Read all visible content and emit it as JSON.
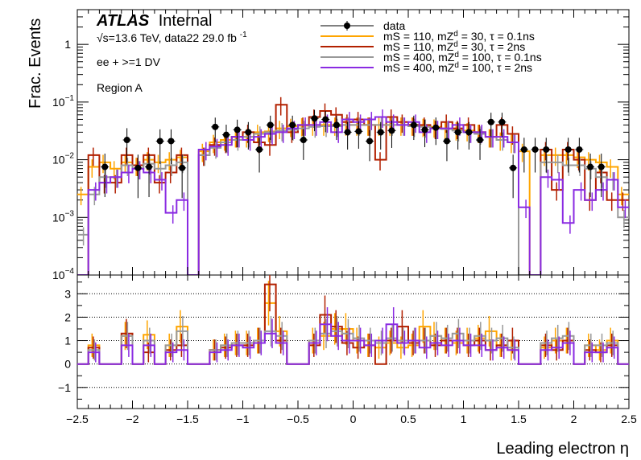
{
  "chart_data": {
    "type": "histogram-with-ratio",
    "x_axis": {
      "label": "Leading electron η",
      "range": [
        -2.5,
        2.5
      ],
      "ticks": [
        -2.5,
        -2,
        -1.5,
        -1,
        -0.5,
        0,
        0.5,
        1,
        1.5,
        2,
        2.5
      ],
      "tick_labels": [
        "−2.5",
        "−2",
        "−1.5",
        "−1",
        "−0.5",
        "0",
        "0.5",
        "1",
        "1.5",
        "2",
        "2.5"
      ]
    },
    "top_panel": {
      "ylabel": "Frac. Events",
      "yscale": "log",
      "ylim": [
        0.0001,
        4
      ],
      "ticks": [
        {
          "value": 1,
          "base": "1",
          "exp": ""
        },
        {
          "value": 0.1,
          "base": "10",
          "exp": "−1"
        },
        {
          "value": 0.01,
          "base": "10",
          "exp": "−2"
        },
        {
          "value": 0.001,
          "base": "10",
          "exp": "−3"
        },
        {
          "value": 0.0001,
          "base": "10",
          "exp": "−4"
        }
      ]
    },
    "bottom_panel": {
      "ylim": [
        -1.9,
        3.8
      ],
      "ticks": [
        -1,
        0,
        1,
        2,
        3
      ],
      "tick_labels": [
        "−1",
        "0",
        "1",
        "2",
        "3"
      ],
      "gridlines": [
        -1,
        0,
        1,
        2,
        3
      ]
    },
    "annotations": {
      "atlas": "ATLAS",
      "internal": "Internal",
      "energy": "√s=13.6 TeV, data22 29.0 fb",
      "energy_exp": "-1",
      "selection": "ee + >=1 DV",
      "region": "Region A"
    },
    "bin_edges": [
      -2.5,
      -2.4,
      -2.3,
      -2.2,
      -2.1,
      -2.0,
      -1.9,
      -1.8,
      -1.7,
      -1.6,
      -1.5,
      -1.4,
      -1.3,
      -1.2,
      -1.1,
      -1.0,
      -0.9,
      -0.8,
      -0.7,
      -0.6,
      -0.5,
      -0.4,
      -0.3,
      -0.2,
      -0.1,
      0.0,
      0.1,
      0.2,
      0.3,
      0.4,
      0.5,
      0.6,
      0.7,
      0.8,
      0.9,
      1.0,
      1.1,
      1.2,
      1.3,
      1.4,
      1.5,
      1.6,
      1.7,
      1.8,
      1.9,
      2.0,
      2.1,
      2.2,
      2.3,
      2.4,
      2.5
    ],
    "data": {
      "name": "data",
      "x": [
        -2.25,
        -2.05,
        -1.95,
        -1.85,
        -1.75,
        -1.65,
        -1.55,
        -1.25,
        -1.15,
        -1.05,
        -0.95,
        -0.85,
        -0.75,
        -0.55,
        -0.45,
        -0.35,
        -0.25,
        -0.15,
        -0.05,
        0.05,
        0.15,
        0.25,
        0.35,
        0.55,
        0.65,
        0.75,
        0.85,
        0.95,
        1.05,
        1.15,
        1.25,
        1.35,
        1.45,
        1.55,
        1.65,
        1.75,
        1.95,
        2.05,
        2.15,
        2.25
      ],
      "y": [
        0.0075,
        0.022,
        0.0072,
        0.0075,
        0.021,
        0.021,
        0.0072,
        0.037,
        0.027,
        0.033,
        0.03,
        0.015,
        0.04,
        0.04,
        0.022,
        0.052,
        0.05,
        0.04,
        0.03,
        0.031,
        0.021,
        0.03,
        0.032,
        0.04,
        0.033,
        0.036,
        0.021,
        0.03,
        0.03,
        0.022,
        0.045,
        0.045,
        0.0072,
        0.015,
        0.015,
        0.015,
        0.015,
        0.015,
        0.0075,
        0.0075
      ],
      "err_rel": [
        0.7,
        0.6,
        0.7,
        0.7,
        0.6,
        0.6,
        0.7,
        0.45,
        0.5,
        0.5,
        0.5,
        0.6,
        0.45,
        0.45,
        0.55,
        0.4,
        0.4,
        0.45,
        0.5,
        0.5,
        0.55,
        0.5,
        0.5,
        0.45,
        0.5,
        0.5,
        0.55,
        0.5,
        0.5,
        0.55,
        0.45,
        0.45,
        0.7,
        0.6,
        0.6,
        0.6,
        0.6,
        0.6,
        0.7,
        0.7
      ]
    },
    "series": [
      {
        "name": "mS = 110, mZ_d = 30, τ = 0.1ns",
        "color": "#ffa500",
        "values": [
          0.0025,
          0.0075,
          0.009,
          0.007,
          0.009,
          0.008,
          0.01,
          0.009,
          0.01,
          0.011,
          0.0001,
          0.014,
          0.02,
          0.022,
          0.025,
          0.025,
          0.03,
          0.031,
          0.035,
          0.038,
          0.039,
          0.04,
          0.04,
          0.04,
          0.04,
          0.04,
          0.04,
          0.04,
          0.04,
          0.04,
          0.04,
          0.038,
          0.037,
          0.034,
          0.033,
          0.032,
          0.03,
          0.025,
          0.022,
          0.02,
          0.014,
          0.0001,
          0.012,
          0.012,
          0.012,
          0.011,
          0.01,
          0.009,
          0.0075,
          0.0025
        ]
      },
      {
        "name": "mS = 110, mZ_d = 30, τ = 2ns",
        "color": "#b22000",
        "values": [
          0.0001,
          0.012,
          0.004,
          0.004,
          0.012,
          0.008,
          0.012,
          0.004,
          0.006,
          0.012,
          0.0001,
          0.012,
          0.018,
          0.02,
          0.025,
          0.03,
          0.02,
          0.018,
          0.09,
          0.03,
          0.04,
          0.055,
          0.07,
          0.06,
          0.045,
          0.05,
          0.04,
          0.01,
          0.055,
          0.045,
          0.04,
          0.04,
          0.035,
          0.045,
          0.035,
          0.04,
          0.03,
          0.025,
          0.04,
          0.028,
          0.0001,
          0.0001,
          0.015,
          0.003,
          0.015,
          0.01,
          0.002,
          0.006,
          0.002,
          0.002
        ]
      },
      {
        "name": "mS = 400, mZ_d = 100, τ = 0.1ns",
        "color": "#999999",
        "values": [
          0.0005,
          0.0025,
          0.005,
          0.005,
          0.008,
          0.007,
          0.0085,
          0.007,
          0.008,
          0.009,
          0.0001,
          0.012,
          0.016,
          0.02,
          0.022,
          0.025,
          0.028,
          0.03,
          0.032,
          0.033,
          0.035,
          0.037,
          0.038,
          0.038,
          0.04,
          0.04,
          0.04,
          0.04,
          0.04,
          0.04,
          0.038,
          0.037,
          0.035,
          0.034,
          0.032,
          0.03,
          0.028,
          0.025,
          0.022,
          0.02,
          0.0001,
          0.0001,
          0.009,
          0.009,
          0.008,
          0.008,
          0.007,
          0.005,
          0.0045,
          0.001
        ]
      },
      {
        "name": "mS = 400, mZ_d = 100, τ = 2ns",
        "color": "#8a2be2",
        "values": [
          0.0001,
          0.003,
          0.004,
          0.005,
          0.006,
          0.007,
          0.006,
          0.0045,
          0.0012,
          0.002,
          0.0001,
          0.015,
          0.017,
          0.018,
          0.025,
          0.022,
          0.025,
          0.028,
          0.03,
          0.035,
          0.04,
          0.04,
          0.045,
          0.03,
          0.05,
          0.045,
          0.05,
          0.055,
          0.045,
          0.04,
          0.045,
          0.03,
          0.035,
          0.035,
          0.04,
          0.03,
          0.03,
          0.025,
          0.025,
          0.02,
          0.0015,
          0.0001,
          0.005,
          0.0045,
          0.0008,
          0.003,
          0.002,
          0.003,
          0.0045,
          0.0015
        ]
      }
    ],
    "ratios": [
      [
        0.0,
        0.8,
        0.0,
        0.0,
        1.2,
        0.0,
        1.25,
        0.0,
        0.8,
        1.6,
        0.0,
        0.0,
        0.6,
        0.8,
        0.9,
        0.9,
        1.0,
        2.6,
        1.4,
        0.0,
        0.0,
        1.0,
        1.2,
        1.5,
        1.5,
        1.0,
        0.8,
        0.7,
        0.9,
        0.7,
        0.8,
        1.6,
        1.2,
        1.0,
        0.9,
        1.0,
        1.1,
        1.4,
        0.8,
        0.6,
        0.0,
        0.0,
        0.7,
        1.0,
        1.0,
        0.0,
        0.8,
        0.6,
        1.0,
        0.0
      ],
      [
        0.0,
        0.7,
        0.0,
        0.0,
        1.3,
        0.0,
        0.5,
        0.0,
        0.6,
        0.8,
        0.0,
        0.0,
        0.6,
        0.7,
        0.8,
        0.8,
        1.0,
        3.4,
        1.0,
        0.0,
        0.0,
        0.8,
        2.1,
        1.6,
        0.9,
        0.7,
        0.8,
        0.0,
        1.0,
        1.6,
        0.9,
        1.0,
        0.8,
        1.0,
        1.0,
        0.8,
        1.0,
        0.6,
        0.8,
        1.0,
        0.0,
        0.0,
        0.8,
        0.6,
        1.0,
        0.0,
        0.6,
        0.5,
        0.8,
        0.0
      ],
      [
        0.0,
        0.6,
        0.0,
        0.0,
        1.2,
        0.0,
        1.0,
        0.0,
        0.8,
        1.4,
        0.0,
        0.0,
        0.6,
        0.8,
        0.9,
        0.9,
        1.0,
        1.4,
        1.2,
        0.0,
        0.0,
        1.0,
        1.3,
        1.4,
        1.3,
        1.1,
        1.0,
        0.9,
        1.1,
        1.0,
        1.0,
        1.0,
        1.2,
        1.1,
        1.3,
        1.0,
        1.2,
        1.0,
        1.1,
        0.7,
        0.0,
        0.0,
        0.9,
        1.1,
        1.2,
        0.0,
        0.8,
        0.8,
        0.9,
        0.0
      ],
      [
        0.0,
        0.5,
        0.0,
        0.0,
        0.8,
        0.0,
        0.8,
        0.0,
        0.5,
        0.6,
        0.0,
        0.0,
        0.5,
        0.6,
        0.8,
        0.7,
        0.9,
        1.3,
        0.9,
        0.0,
        0.0,
        0.9,
        1.7,
        1.2,
        1.0,
        1.0,
        0.8,
        1.0,
        1.7,
        0.9,
        1.0,
        0.7,
        0.9,
        0.8,
        1.0,
        0.8,
        0.8,
        0.6,
        0.7,
        0.6,
        0.0,
        0.0,
        0.6,
        0.7,
        0.9,
        0.0,
        0.5,
        0.5,
        0.7,
        0.0
      ]
    ]
  }
}
